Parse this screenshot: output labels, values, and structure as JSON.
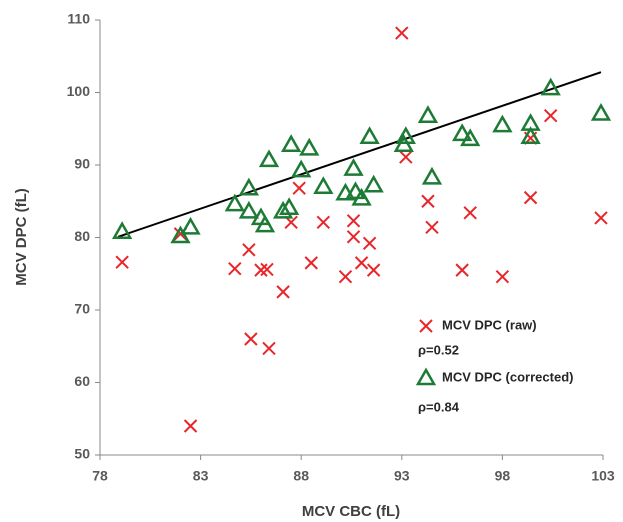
{
  "chart_data": {
    "type": "scatter",
    "x_label": "MCV CBC (fL)",
    "y_label": "MCV DPC  (fL)",
    "xlim": [
      78,
      103
    ],
    "xticks": [
      78,
      83,
      88,
      93,
      98,
      103
    ],
    "ylim": [
      50,
      110
    ],
    "yticks": [
      50,
      60,
      70,
      80,
      90,
      100,
      110
    ],
    "grid": false,
    "legend_position": "lower right",
    "series": [
      {
        "name": "MCV DPC (raw)",
        "color": "#e8262a",
        "marker": "x",
        "x": [
          79.1,
          82.0,
          82.5,
          84.7,
          85.4,
          85.5,
          86.0,
          86.3,
          86.4,
          87.1,
          87.5,
          87.9,
          88.5,
          89.1,
          90.2,
          90.6,
          90.6,
          91.0,
          91.4,
          91.6,
          93.0,
          93.2,
          94.3,
          94.5,
          96.0,
          96.4,
          98.0,
          99.4,
          99.4,
          100.4,
          102.9
        ],
        "y": [
          76.6,
          80.5,
          54,
          75.7,
          78.3,
          66.0,
          75.5,
          75.6,
          64.7,
          72.5,
          82.1,
          86.8,
          76.5,
          82.1,
          74.6,
          82.3,
          80.1,
          76.5,
          79.2,
          75.5,
          108.2,
          91.1,
          85.0,
          81.4,
          75.5,
          83.4,
          74.6,
          85.5,
          93.7,
          96.8,
          82.7
        ]
      },
      {
        "name": "MCV DPC (corrected)",
        "color": "#1e7b35",
        "marker": "triangle",
        "x": [
          79.1,
          82.0,
          82.5,
          84.7,
          85.4,
          85.4,
          86.0,
          86.2,
          86.4,
          87.1,
          87.4,
          87.5,
          88.0,
          88.4,
          89.1,
          90.2,
          90.6,
          90.7,
          91.0,
          91.4,
          91.6,
          93.1,
          93.2,
          94.3,
          94.5,
          96.0,
          96.4,
          98.0,
          99.4,
          99.4,
          100.4,
          102.9
        ],
        "y": [
          80.8,
          80.2,
          81.4,
          84.6,
          86.8,
          83.6,
          82.7,
          81.7,
          90.7,
          83.6,
          84.1,
          92.8,
          89.3,
          92.3,
          87.0,
          86.1,
          89.5,
          86.3,
          85.4,
          93.9,
          87.2,
          92.8,
          93.9,
          96.8,
          88.3,
          94.3,
          93.6,
          95.5,
          95.7,
          93.9,
          100.6,
          97.1
        ]
      }
    ],
    "trendline": {
      "x": [
        78.9,
        102.9
      ],
      "y": [
        80.1,
        102.8
      ],
      "color": "#000000"
    },
    "annotations": [
      "ρ=0.52",
      "ρ=0.84"
    ]
  }
}
